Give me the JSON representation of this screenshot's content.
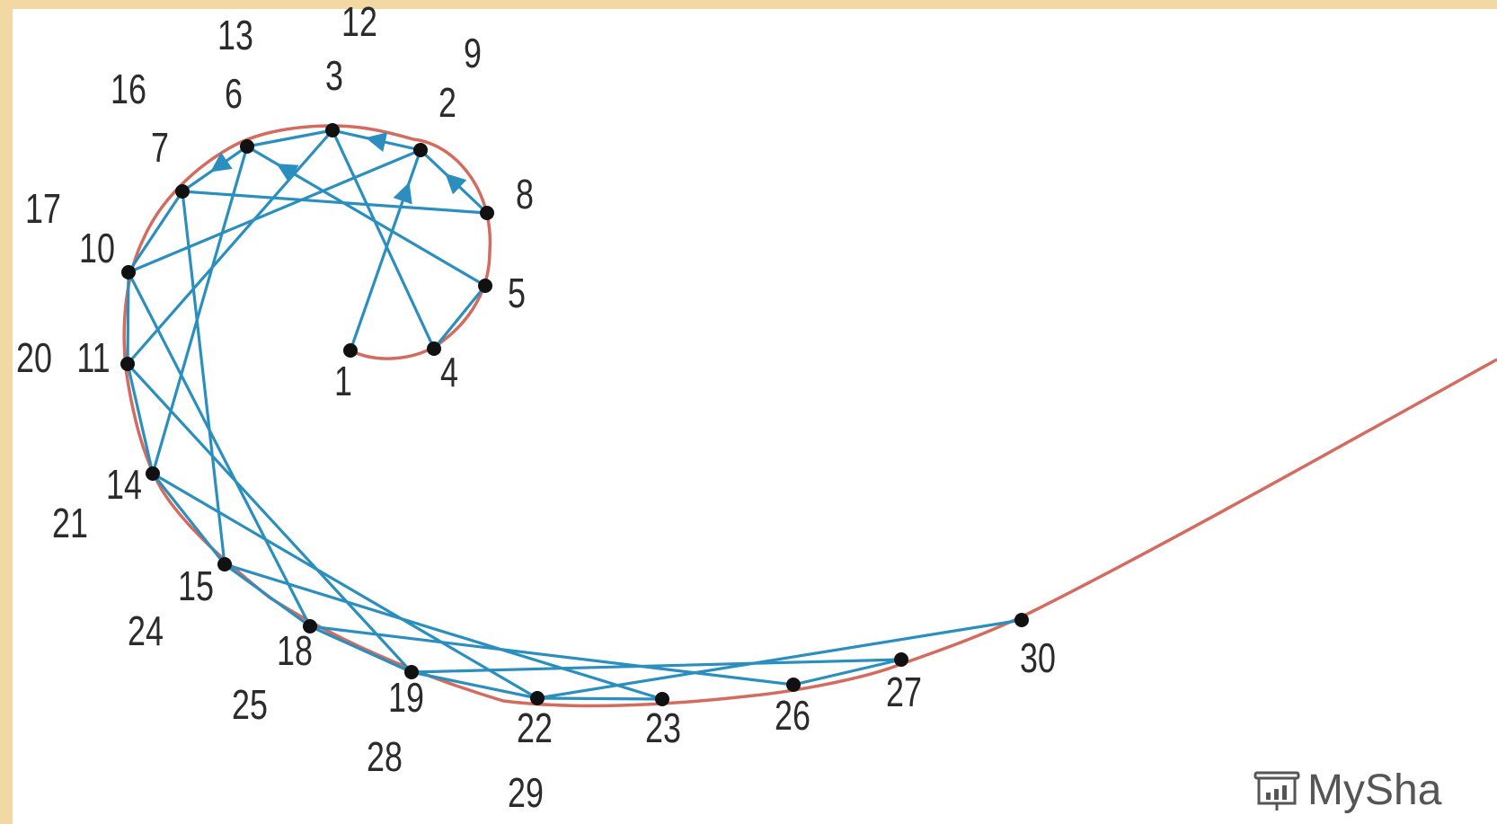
{
  "diagram": {
    "colors": {
      "curve": "#d46b5f",
      "chord": "#2a8fbe",
      "point": "#111111"
    },
    "points": [
      {
        "id": "1",
        "labels": [
          "1"
        ]
      },
      {
        "id": "2",
        "labels": [
          "2",
          "9"
        ]
      },
      {
        "id": "3",
        "labels": [
          "3",
          "12"
        ]
      },
      {
        "id": "4",
        "labels": [
          "4"
        ]
      },
      {
        "id": "5",
        "labels": [
          "5"
        ]
      },
      {
        "id": "6",
        "labels": [
          "6",
          "13"
        ]
      },
      {
        "id": "7",
        "labels": [
          "7",
          "16"
        ]
      },
      {
        "id": "8",
        "labels": [
          "8"
        ]
      },
      {
        "id": "10",
        "labels": [
          "10",
          "17"
        ]
      },
      {
        "id": "11",
        "labels": [
          "11",
          "20"
        ]
      },
      {
        "id": "14",
        "labels": [
          "14",
          "21"
        ]
      },
      {
        "id": "15",
        "labels": [
          "15",
          "24"
        ]
      },
      {
        "id": "18",
        "labels": [
          "18",
          "25"
        ]
      },
      {
        "id": "19",
        "labels": [
          "19",
          "28"
        ]
      },
      {
        "id": "22",
        "labels": [
          "22",
          "29"
        ]
      },
      {
        "id": "23",
        "labels": [
          "23"
        ]
      },
      {
        "id": "26",
        "labels": [
          "26"
        ]
      },
      {
        "id": "27",
        "labels": [
          "27"
        ]
      },
      {
        "id": "30",
        "labels": [
          "30"
        ]
      }
    ],
    "sequence": [
      1,
      2,
      3,
      4,
      5,
      6,
      7,
      8,
      9,
      10,
      11,
      12,
      13,
      14,
      15,
      16,
      17,
      18,
      19,
      20,
      21,
      22,
      23,
      24,
      25,
      26,
      27,
      28,
      29,
      30
    ],
    "arrows_on_steps": [
      1,
      2,
      5,
      6,
      8
    ]
  },
  "watermark": {
    "icon": "presentation-chart-icon",
    "text": "MySha"
  }
}
